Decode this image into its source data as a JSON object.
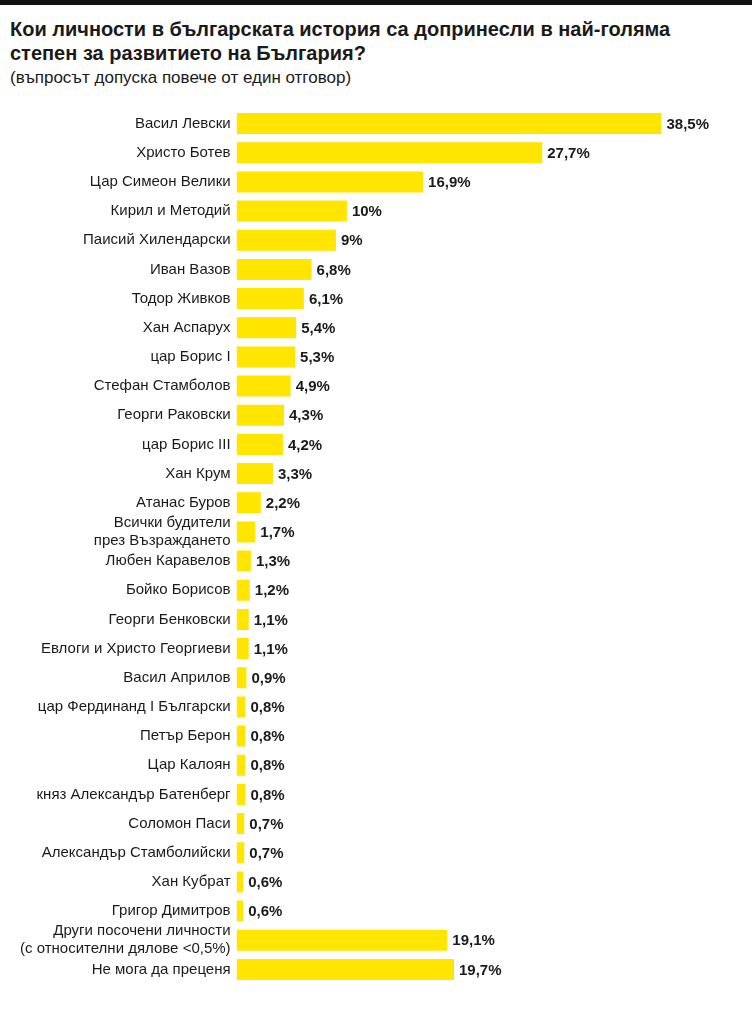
{
  "chart_data": {
    "type": "bar",
    "title": "Кои личности в българската история са допринесли в най-голяма степен за развитието на България?",
    "subtitle": "(въпросът допуска повече от един отговор)",
    "orientation": "horizontal",
    "categories": [
      "Васил Левски",
      "Христо Ботев",
      "Цар Симеон Велики",
      "Кирил и Методий",
      "Паисий Хилендарски",
      "Иван Вазов",
      "Тодор Живков",
      "Хан Аспарух",
      "цар Борис I",
      "Стефан Стамболов",
      "Георги Раковски",
      "цар Борис III",
      "Хан Крум",
      "Атанас Буров",
      "Всички будители през Възраждането",
      "Любен Каравелов",
      "Бойко Борисов",
      "Георги Бенковски",
      "Евлоги и Христо Георгиеви",
      "Васил Априлов",
      "цар Фердинанд I Български",
      "Петър Берон",
      "Цар Калоян",
      "княз Александър Батенберг",
      "Соломон Паси",
      "Александър Стамболийски",
      "Хан Кубрат",
      "Григор Димитров",
      "Други посочени личности (с относителни дялове <0,5%)",
      "Не мога да преценя"
    ],
    "values": [
      38.5,
      27.7,
      16.9,
      10,
      9,
      6.8,
      6.1,
      5.4,
      5.3,
      4.9,
      4.3,
      4.2,
      3.3,
      2.2,
      1.7,
      1.3,
      1.2,
      1.1,
      1.1,
      0.9,
      0.8,
      0.8,
      0.8,
      0.8,
      0.7,
      0.7,
      0.6,
      0.6,
      19.1,
      19.7
    ],
    "value_labels": [
      "38,5%",
      "27,7%",
      "16,9%",
      "10%",
      "9%",
      "6,8%",
      "6,1%",
      "5,4%",
      "5,3%",
      "4,9%",
      "4,3%",
      "4,2%",
      "3,3%",
      "2,2%",
      "1,7%",
      "1,3%",
      "1,2%",
      "1,1%",
      "1,1%",
      "0,9%",
      "0,8%",
      "0,8%",
      "0,8%",
      "0,8%",
      "0,7%",
      "0,7%",
      "0,6%",
      "0,6%",
      "19,1%",
      "19,7%"
    ],
    "color": "#ffe500",
    "data_labels": true,
    "tick_labels": "y",
    "grid": false
  }
}
